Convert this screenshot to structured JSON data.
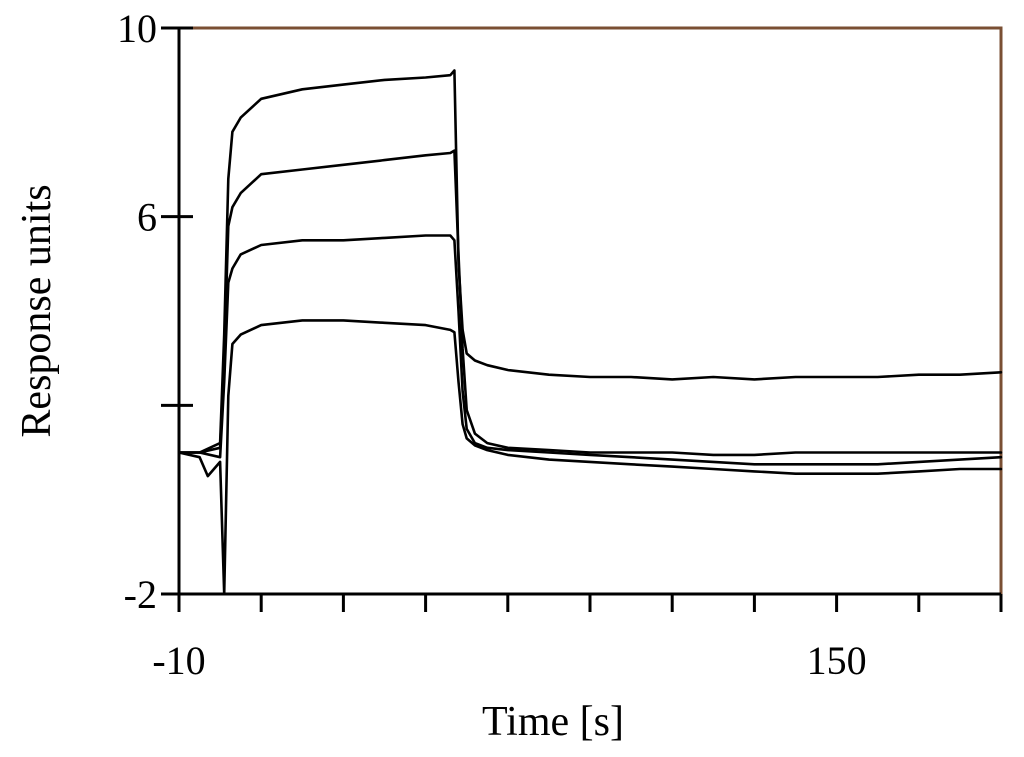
{
  "chart_data": {
    "type": "line",
    "title": "",
    "xlabel": "Time [s]",
    "ylabel": "Response units",
    "xlim": [
      -10,
      190
    ],
    "ylim": [
      -2,
      10
    ],
    "x_ticks": [
      -10,
      10,
      30,
      50,
      70,
      90,
      110,
      130,
      150,
      170,
      190
    ],
    "x_tick_labels": [
      "-10",
      "150"
    ],
    "x_tick_label_values": [
      -10,
      150
    ],
    "y_ticks": [
      -2,
      2,
      6,
      10
    ],
    "y_tick_labels": [
      "-2",
      "6",
      "10"
    ],
    "y_tick_label_values": [
      -2,
      6,
      10
    ],
    "grid": false,
    "legend": "none",
    "line_color": "#000000",
    "frame_color": "#7a4f33",
    "series": [
      {
        "x": [
          -10,
          -5,
          0,
          1,
          2,
          3,
          5,
          10,
          20,
          30,
          40,
          50,
          56,
          57,
          58,
          59,
          60,
          62,
          65,
          70,
          80,
          90,
          100,
          110,
          120,
          130,
          140,
          150,
          160,
          170,
          180,
          190
        ],
        "y": [
          1.0,
          1.0,
          1.2,
          3.5,
          6.8,
          7.8,
          8.1,
          8.5,
          8.7,
          8.8,
          8.9,
          8.95,
          9.0,
          9.1,
          5.0,
          3.6,
          3.1,
          2.95,
          2.85,
          2.75,
          2.65,
          2.6,
          2.6,
          2.55,
          2.6,
          2.55,
          2.6,
          2.6,
          2.6,
          2.65,
          2.65,
          2.7
        ]
      },
      {
        "x": [
          -10,
          -5,
          0,
          1,
          2,
          3,
          5,
          10,
          20,
          30,
          40,
          50,
          56,
          57,
          58,
          59,
          60,
          62,
          65,
          70,
          80,
          90,
          100,
          110,
          120,
          130,
          140,
          150,
          160,
          170,
          180,
          190
        ],
        "y": [
          1.0,
          1.0,
          1.1,
          3.0,
          5.8,
          6.2,
          6.5,
          6.9,
          7.0,
          7.1,
          7.2,
          7.3,
          7.35,
          7.4,
          5.2,
          3.2,
          1.9,
          1.4,
          1.2,
          1.1,
          1.05,
          1.0,
          1.0,
          1.0,
          0.95,
          0.95,
          1.0,
          1.0,
          1.0,
          1.0,
          1.0,
          1.0
        ]
      },
      {
        "x": [
          -10,
          -5,
          0,
          1,
          2,
          3,
          5,
          10,
          20,
          30,
          40,
          50,
          56,
          57,
          58,
          59,
          60,
          62,
          65,
          70,
          80,
          90,
          100,
          110,
          120,
          130,
          140,
          150,
          160,
          170,
          180,
          190
        ],
        "y": [
          1.0,
          1.0,
          0.9,
          2.5,
          4.6,
          4.9,
          5.2,
          5.4,
          5.5,
          5.5,
          5.55,
          5.6,
          5.6,
          5.5,
          4.0,
          2.3,
          1.5,
          1.2,
          1.1,
          1.05,
          1.0,
          0.95,
          0.9,
          0.85,
          0.8,
          0.75,
          0.75,
          0.75,
          0.75,
          0.8,
          0.85,
          0.9
        ]
      },
      {
        "x": [
          -10,
          -5,
          -3,
          0,
          1,
          2,
          3,
          5,
          10,
          20,
          30,
          40,
          50,
          56,
          57,
          58,
          59,
          60,
          62,
          65,
          70,
          80,
          90,
          100,
          110,
          120,
          130,
          140,
          150,
          160,
          170,
          180,
          190
        ],
        "y": [
          1.0,
          0.9,
          0.5,
          0.8,
          -2.0,
          2.2,
          3.3,
          3.5,
          3.7,
          3.8,
          3.8,
          3.75,
          3.7,
          3.6,
          3.55,
          2.5,
          1.6,
          1.3,
          1.15,
          1.05,
          0.95,
          0.85,
          0.8,
          0.75,
          0.7,
          0.65,
          0.6,
          0.55,
          0.55,
          0.55,
          0.6,
          0.65,
          0.65
        ]
      }
    ]
  }
}
